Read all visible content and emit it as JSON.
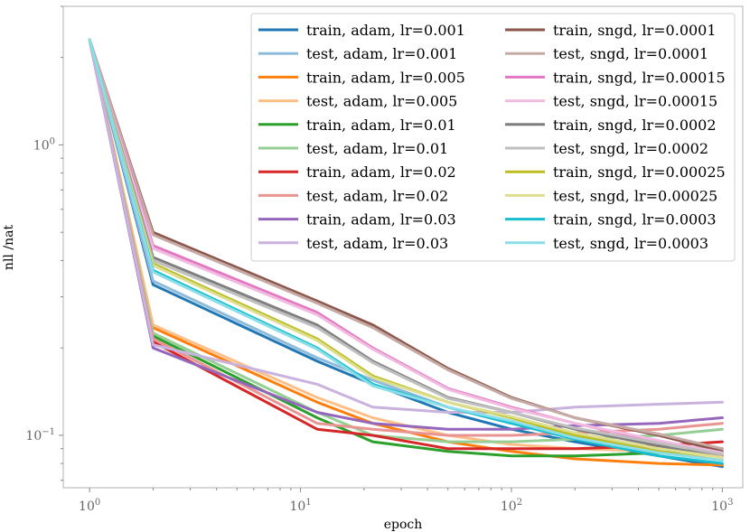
{
  "chart_data": {
    "type": "line",
    "xscale": "log",
    "yscale": "log",
    "xlabel": "epoch",
    "ylabel": "nll /nat",
    "xlim": [
      0.75,
      1250
    ],
    "ylim": [
      0.066,
      3.0
    ],
    "x_ticks": [
      {
        "value": 1,
        "base": "10",
        "exp": "0"
      },
      {
        "value": 10,
        "base": "10",
        "exp": "1"
      },
      {
        "value": 100,
        "base": "10",
        "exp": "2"
      },
      {
        "value": 1000,
        "base": "10",
        "exp": "3"
      }
    ],
    "y_ticks": [
      {
        "value": 0.1,
        "base": "10",
        "exp": "−1"
      },
      {
        "value": 1,
        "base": "10",
        "exp": "0"
      }
    ],
    "legend_position": "top-right",
    "legend_columns": 2,
    "x": [
      1,
      2,
      12,
      22,
      50,
      100,
      200,
      500,
      1000
    ],
    "series": [
      {
        "name": "train, adam, lr=0.001",
        "color": "#1f77b4",
        "values": [
          2.3,
          0.33,
          0.18,
          0.15,
          0.12,
          0.105,
          0.095,
          0.085,
          0.078
        ]
      },
      {
        "name": "test, adam, lr=0.001",
        "color": "#8fbbda",
        "values": [
          2.3,
          0.34,
          0.185,
          0.155,
          0.125,
          0.11,
          0.1,
          0.09,
          0.085
        ]
      },
      {
        "name": "train, adam, lr=0.005",
        "color": "#ff7f0e",
        "values": [
          2.3,
          0.235,
          0.13,
          0.11,
          0.095,
          0.088,
          0.083,
          0.08,
          0.079
        ]
      },
      {
        "name": "test, adam, lr=0.005",
        "color": "#ffbf86",
        "values": [
          2.3,
          0.24,
          0.135,
          0.115,
          0.1,
          0.093,
          0.09,
          0.088,
          0.09
        ]
      },
      {
        "name": "train, adam, lr=0.01",
        "color": "#2ca02c",
        "values": [
          2.3,
          0.22,
          0.115,
          0.095,
          0.088,
          0.085,
          0.085,
          0.087,
          0.09
        ]
      },
      {
        "name": "test, adam, lr=0.01",
        "color": "#95cf95",
        "values": [
          2.3,
          0.225,
          0.12,
          0.1,
          0.095,
          0.095,
          0.097,
          0.1,
          0.105
        ]
      },
      {
        "name": "train, adam, lr=0.02",
        "color": "#d62728",
        "values": [
          2.3,
          0.21,
          0.105,
          0.1,
          0.09,
          0.09,
          0.09,
          0.092,
          0.095
        ]
      },
      {
        "name": "test, adam, lr=0.02",
        "color": "#ea9393",
        "values": [
          2.3,
          0.215,
          0.11,
          0.105,
          0.1,
          0.1,
          0.102,
          0.105,
          0.11
        ]
      },
      {
        "name": "train, adam, lr=0.03",
        "color": "#9467bd",
        "values": [
          2.3,
          0.2,
          0.12,
          0.11,
          0.105,
          0.105,
          0.108,
          0.11,
          0.115
        ]
      },
      {
        "name": "test, adam, lr=0.03",
        "color": "#c9b3de",
        "values": [
          2.3,
          0.205,
          0.15,
          0.125,
          0.12,
          0.12,
          0.125,
          0.128,
          0.13
        ]
      },
      {
        "name": "train, sngd, lr=0.0001",
        "color": "#8c564b",
        "values": [
          2.3,
          0.5,
          0.29,
          0.24,
          0.17,
          0.135,
          0.115,
          0.1,
          0.088
        ]
      },
      {
        "name": "test, sngd, lr=0.0001",
        "color": "#c5aaa5",
        "values": [
          2.3,
          0.49,
          0.285,
          0.235,
          0.168,
          0.134,
          0.115,
          0.101,
          0.09
        ]
      },
      {
        "name": "train, sngd, lr=0.00015",
        "color": "#e377c2",
        "values": [
          2.3,
          0.45,
          0.265,
          0.2,
          0.145,
          0.125,
          0.11,
          0.095,
          0.085
        ]
      },
      {
        "name": "test, sngd, lr=0.00015",
        "color": "#f1bbe0",
        "values": [
          2.3,
          0.44,
          0.26,
          0.198,
          0.144,
          0.124,
          0.11,
          0.096,
          0.087
        ]
      },
      {
        "name": "train, sngd, lr=0.0002",
        "color": "#7f7f7f",
        "values": [
          2.3,
          0.41,
          0.24,
          0.18,
          0.135,
          0.12,
          0.105,
          0.092,
          0.084
        ]
      },
      {
        "name": "test, sngd, lr=0.0002",
        "color": "#bfbfbf",
        "values": [
          2.3,
          0.4,
          0.235,
          0.178,
          0.134,
          0.12,
          0.106,
          0.094,
          0.086
        ]
      },
      {
        "name": "train, sngd, lr=0.00025",
        "color": "#bcbd22",
        "values": [
          2.3,
          0.39,
          0.215,
          0.16,
          0.13,
          0.115,
          0.1,
          0.088,
          0.082
        ]
      },
      {
        "name": "test, sngd, lr=0.00025",
        "color": "#ddde90",
        "values": [
          2.3,
          0.385,
          0.212,
          0.158,
          0.13,
          0.116,
          0.102,
          0.09,
          0.084
        ]
      },
      {
        "name": "train, sngd, lr=0.0003",
        "color": "#17becf",
        "values": [
          2.3,
          0.37,
          0.2,
          0.15,
          0.125,
          0.11,
          0.097,
          0.085,
          0.08
        ]
      },
      {
        "name": "test, sngd, lr=0.0003",
        "color": "#8bdee7",
        "values": [
          2.3,
          0.365,
          0.198,
          0.148,
          0.125,
          0.112,
          0.098,
          0.087,
          0.082
        ]
      }
    ]
  }
}
